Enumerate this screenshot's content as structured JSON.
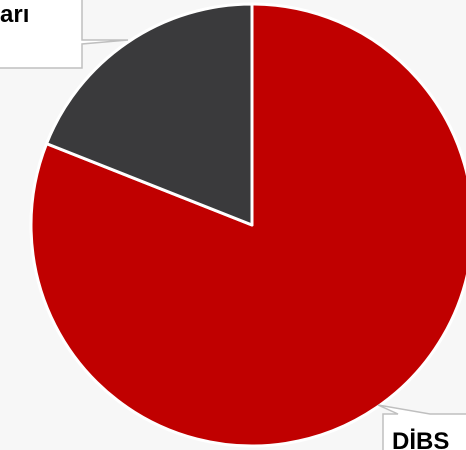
{
  "chart_data": {
    "type": "pie",
    "title": "",
    "slices": [
      {
        "label": "DİBS",
        "value": 81,
        "color": "#c00000"
      },
      {
        "label": "arı",
        "value": 19,
        "color": "#3a3a3c"
      }
    ],
    "legend": "none"
  }
}
